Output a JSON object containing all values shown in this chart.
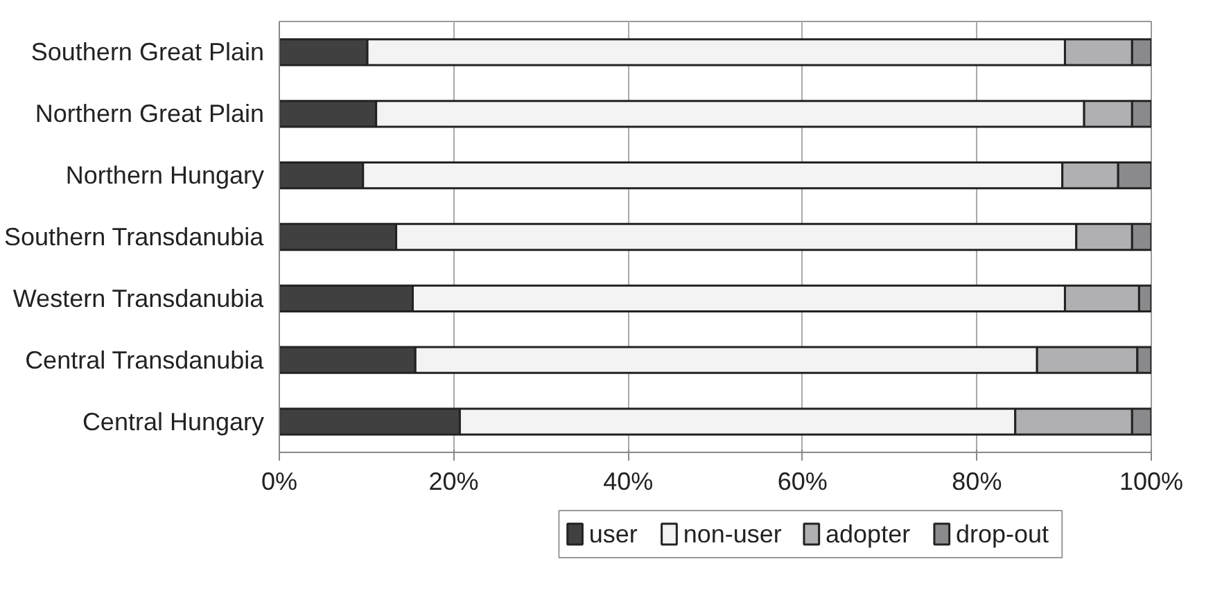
{
  "chart_data": {
    "type": "bar",
    "orientation": "horizontal",
    "stacked": true,
    "categories": [
      "Southern Great Plain",
      "Northern Great Plain",
      "Northern Hungary",
      "Southern Transdanubia",
      "Western Transdanubia",
      "Central Transdanubia",
      "Central Hungary"
    ],
    "series": [
      {
        "name": "user",
        "color": "#404040",
        "values": [
          10.1,
          11.1,
          9.6,
          13.4,
          15.3,
          15.6,
          20.7
        ]
      },
      {
        "name": "non-user",
        "color": "#f2f3f2",
        "values": [
          80.0,
          81.2,
          80.2,
          78.0,
          74.8,
          71.3,
          63.7
        ]
      },
      {
        "name": "adopter",
        "color": "#b0b0b3",
        "values": [
          7.7,
          5.5,
          6.4,
          6.4,
          8.5,
          11.5,
          13.4
        ]
      },
      {
        "name": "drop-out",
        "color": "#8a8a8d",
        "values": [
          2.2,
          2.2,
          3.8,
          2.2,
          1.4,
          1.6,
          2.2
        ]
      }
    ],
    "xlim": [
      0,
      100
    ],
    "xticks": [
      {
        "value": 0,
        "label": "0%"
      },
      {
        "value": 20,
        "label": "20%"
      },
      {
        "value": 40,
        "label": "40%"
      },
      {
        "value": 60,
        "label": "60%"
      },
      {
        "value": 80,
        "label": "80%"
      },
      {
        "value": 100,
        "label": "100%"
      }
    ],
    "grid": "x",
    "legend": "bottom"
  }
}
